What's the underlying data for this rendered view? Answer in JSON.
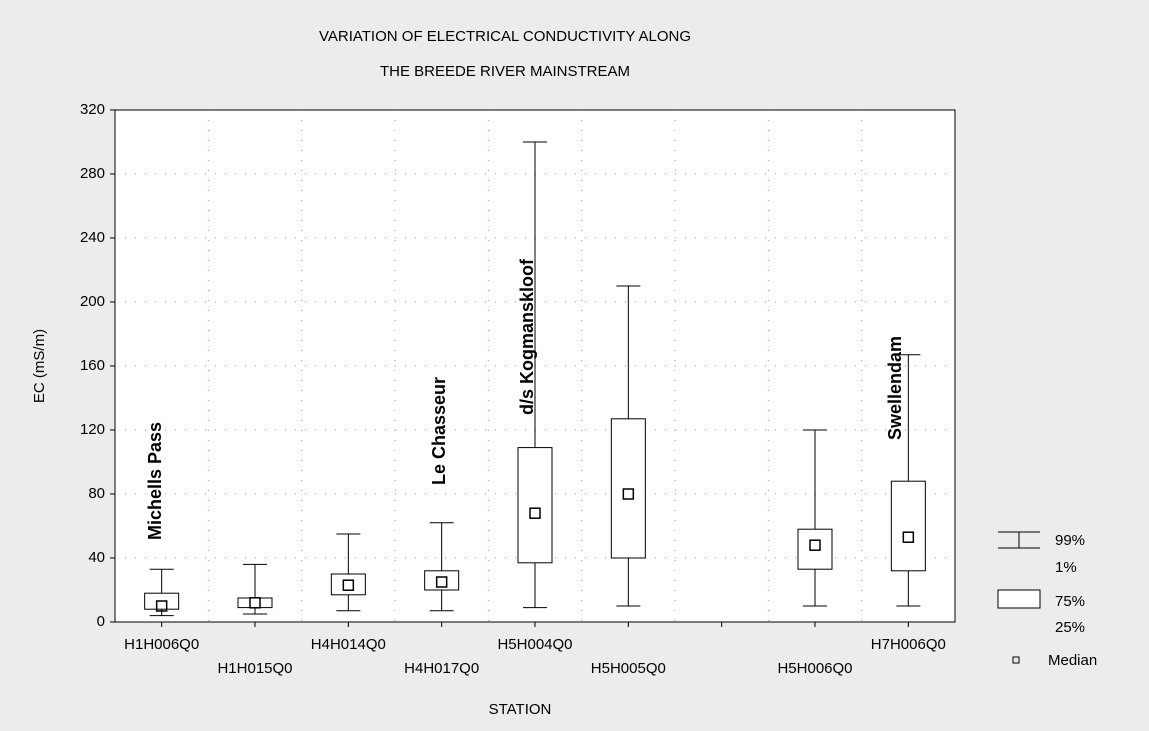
{
  "chart_data": {
    "type": "box",
    "title": "VARIATION OF ELECTRICAL CONDUCTIVITY ALONG",
    "subtitle": "THE BREEDE RIVER MAINSTREAM",
    "x_label": "STATION",
    "y_label": "EC (mS/m)",
    "categories": [
      "H1H006Q0",
      "H1H015Q0",
      "H4H014Q0",
      "H4H017Q0",
      "H5H004Q0",
      "H5H005Q0",
      null,
      "H5H006Q0",
      "H7H006Q0"
    ],
    "min": [
      4,
      5,
      7,
      7,
      9,
      10,
      null,
      10,
      10
    ],
    "q1": [
      8,
      9,
      17,
      20,
      37,
      40,
      null,
      33,
      32
    ],
    "median": [
      10,
      12,
      23,
      25,
      68,
      80,
      null,
      48,
      53
    ],
    "q3": [
      18,
      15,
      30,
      32,
      109,
      127,
      null,
      58,
      88
    ],
    "max": [
      33,
      36,
      55,
      62,
      300,
      210,
      null,
      120,
      167
    ],
    "ylim": [
      0,
      320
    ],
    "yticks": [
      0,
      40,
      80,
      120,
      160,
      200,
      240,
      280,
      320
    ],
    "grid": true,
    "color": "#000000",
    "annotations": [
      "Michells Pass",
      "Le Chasseur",
      "d/s Kogmanskloof",
      "Swellendam"
    ],
    "legend": {
      "whisker": [
        "99%",
        "1%"
      ],
      "box": [
        "75%",
        "25%"
      ],
      "median": "Median"
    }
  }
}
